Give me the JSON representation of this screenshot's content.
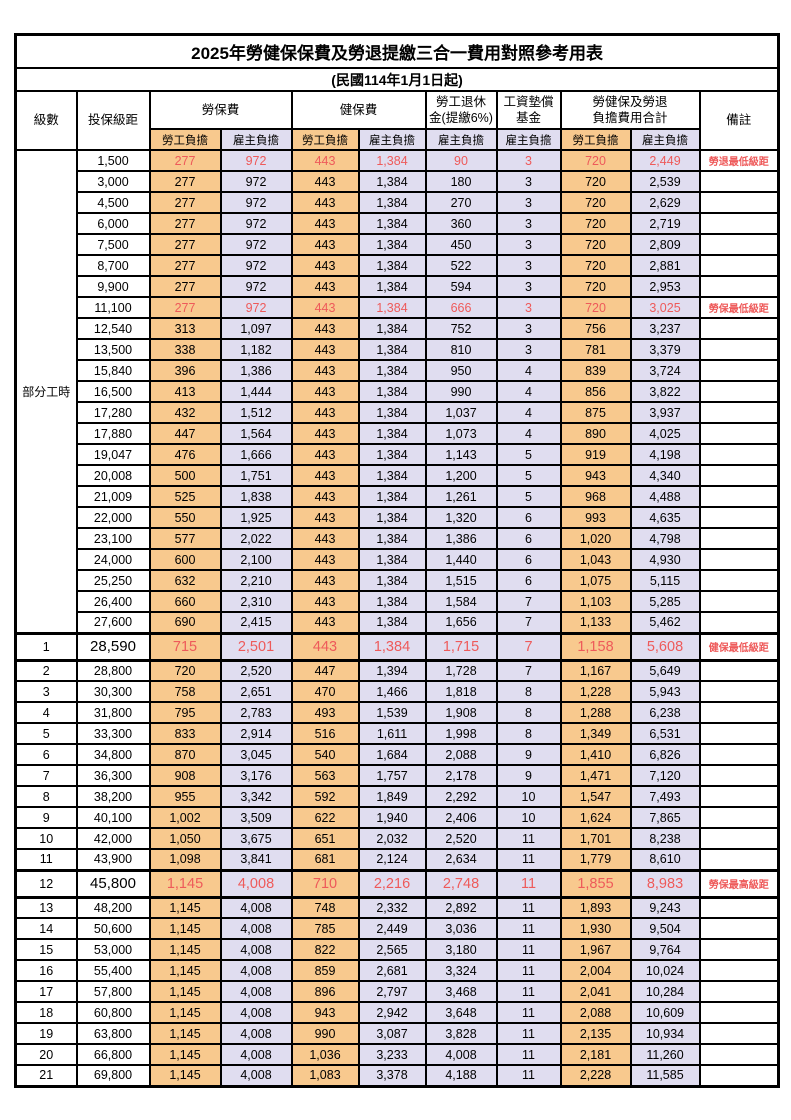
{
  "title": "2025年勞健保保費及勞退提繳三合一費用對照參考用表",
  "subtitle": "(民國114年1月1日起)",
  "header": {
    "level": "級數",
    "salary": "投保級距",
    "labor_group": "勞保費",
    "health_group": "健保費",
    "pension_group": "勞工退休\n金(提繳6%)",
    "wage_fund_group": "工資墊償\n基金",
    "total_group": "勞健保及勞退\n負擔費用合計",
    "note": "備註",
    "employee": "勞工負擔",
    "employer": "雇主負擔"
  },
  "part_time": {
    "label": "部分工時",
    "span": 23
  },
  "colors": {
    "employee_bg": "#F8C98E",
    "employer_bg": "#E0DDF0",
    "highlight_red": "#EE5A5A",
    "border": "#000000"
  },
  "rows": [
    {
      "level": "",
      "salary": "1,500",
      "cells": [
        "277",
        "972",
        "443",
        "1,384",
        "90",
        "3",
        "720",
        "2,449"
      ],
      "note": "勞退最低級距",
      "style": "red"
    },
    {
      "level": "",
      "salary": "3,000",
      "cells": [
        "277",
        "972",
        "443",
        "1,384",
        "180",
        "3",
        "720",
        "2,539"
      ],
      "note": "",
      "style": ""
    },
    {
      "level": "",
      "salary": "4,500",
      "cells": [
        "277",
        "972",
        "443",
        "1,384",
        "270",
        "3",
        "720",
        "2,629"
      ],
      "note": "",
      "style": ""
    },
    {
      "level": "",
      "salary": "6,000",
      "cells": [
        "277",
        "972",
        "443",
        "1,384",
        "360",
        "3",
        "720",
        "2,719"
      ],
      "note": "",
      "style": ""
    },
    {
      "level": "",
      "salary": "7,500",
      "cells": [
        "277",
        "972",
        "443",
        "1,384",
        "450",
        "3",
        "720",
        "2,809"
      ],
      "note": "",
      "style": ""
    },
    {
      "level": "",
      "salary": "8,700",
      "cells": [
        "277",
        "972",
        "443",
        "1,384",
        "522",
        "3",
        "720",
        "2,881"
      ],
      "note": "",
      "style": ""
    },
    {
      "level": "",
      "salary": "9,900",
      "cells": [
        "277",
        "972",
        "443",
        "1,384",
        "594",
        "3",
        "720",
        "2,953"
      ],
      "note": "",
      "style": ""
    },
    {
      "level": "",
      "salary": "11,100",
      "cells": [
        "277",
        "972",
        "443",
        "1,384",
        "666",
        "3",
        "720",
        "3,025"
      ],
      "note": "勞保最低級距",
      "style": "red"
    },
    {
      "level": "",
      "salary": "12,540",
      "cells": [
        "313",
        "1,097",
        "443",
        "1,384",
        "752",
        "3",
        "756",
        "3,237"
      ],
      "note": "",
      "style": ""
    },
    {
      "level": "",
      "salary": "13,500",
      "cells": [
        "338",
        "1,182",
        "443",
        "1,384",
        "810",
        "3",
        "781",
        "3,379"
      ],
      "note": "",
      "style": ""
    },
    {
      "level": "",
      "salary": "15,840",
      "cells": [
        "396",
        "1,386",
        "443",
        "1,384",
        "950",
        "4",
        "839",
        "3,724"
      ],
      "note": "",
      "style": ""
    },
    {
      "level": "",
      "salary": "16,500",
      "cells": [
        "413",
        "1,444",
        "443",
        "1,384",
        "990",
        "4",
        "856",
        "3,822"
      ],
      "note": "",
      "style": ""
    },
    {
      "level": "",
      "salary": "17,280",
      "cells": [
        "432",
        "1,512",
        "443",
        "1,384",
        "1,037",
        "4",
        "875",
        "3,937"
      ],
      "note": "",
      "style": ""
    },
    {
      "level": "",
      "salary": "17,880",
      "cells": [
        "447",
        "1,564",
        "443",
        "1,384",
        "1,073",
        "4",
        "890",
        "4,025"
      ],
      "note": "",
      "style": ""
    },
    {
      "level": "",
      "salary": "19,047",
      "cells": [
        "476",
        "1,666",
        "443",
        "1,384",
        "1,143",
        "5",
        "919",
        "4,198"
      ],
      "note": "",
      "style": ""
    },
    {
      "level": "",
      "salary": "20,008",
      "cells": [
        "500",
        "1,751",
        "443",
        "1,384",
        "1,200",
        "5",
        "943",
        "4,340"
      ],
      "note": "",
      "style": ""
    },
    {
      "level": "",
      "salary": "21,009",
      "cells": [
        "525",
        "1,838",
        "443",
        "1,384",
        "1,261",
        "5",
        "968",
        "4,488"
      ],
      "note": "",
      "style": ""
    },
    {
      "level": "",
      "salary": "22,000",
      "cells": [
        "550",
        "1,925",
        "443",
        "1,384",
        "1,320",
        "6",
        "993",
        "4,635"
      ],
      "note": "",
      "style": ""
    },
    {
      "level": "",
      "salary": "23,100",
      "cells": [
        "577",
        "2,022",
        "443",
        "1,384",
        "1,386",
        "6",
        "1,020",
        "4,798"
      ],
      "note": "",
      "style": ""
    },
    {
      "level": "",
      "salary": "24,000",
      "cells": [
        "600",
        "2,100",
        "443",
        "1,384",
        "1,440",
        "6",
        "1,043",
        "4,930"
      ],
      "note": "",
      "style": ""
    },
    {
      "level": "",
      "salary": "25,250",
      "cells": [
        "632",
        "2,210",
        "443",
        "1,384",
        "1,515",
        "6",
        "1,075",
        "5,115"
      ],
      "note": "",
      "style": ""
    },
    {
      "level": "",
      "salary": "26,400",
      "cells": [
        "660",
        "2,310",
        "443",
        "1,384",
        "1,584",
        "7",
        "1,103",
        "5,285"
      ],
      "note": "",
      "style": ""
    },
    {
      "level": "",
      "salary": "27,600",
      "cells": [
        "690",
        "2,415",
        "443",
        "1,384",
        "1,656",
        "7",
        "1,133",
        "5,462"
      ],
      "note": "",
      "style": ""
    },
    {
      "level": "1",
      "salary": "28,590",
      "cells": [
        "715",
        "2,501",
        "443",
        "1,384",
        "1,715",
        "7",
        "1,158",
        "5,608"
      ],
      "note": "健保最低級距",
      "style": "red tall"
    },
    {
      "level": "2",
      "salary": "28,800",
      "cells": [
        "720",
        "2,520",
        "447",
        "1,394",
        "1,728",
        "7",
        "1,167",
        "5,649"
      ],
      "note": "",
      "style": ""
    },
    {
      "level": "3",
      "salary": "30,300",
      "cells": [
        "758",
        "2,651",
        "470",
        "1,466",
        "1,818",
        "8",
        "1,228",
        "5,943"
      ],
      "note": "",
      "style": ""
    },
    {
      "level": "4",
      "salary": "31,800",
      "cells": [
        "795",
        "2,783",
        "493",
        "1,539",
        "1,908",
        "8",
        "1,288",
        "6,238"
      ],
      "note": "",
      "style": ""
    },
    {
      "level": "5",
      "salary": "33,300",
      "cells": [
        "833",
        "2,914",
        "516",
        "1,611",
        "1,998",
        "8",
        "1,349",
        "6,531"
      ],
      "note": "",
      "style": ""
    },
    {
      "level": "6",
      "salary": "34,800",
      "cells": [
        "870",
        "3,045",
        "540",
        "1,684",
        "2,088",
        "9",
        "1,410",
        "6,826"
      ],
      "note": "",
      "style": ""
    },
    {
      "level": "7",
      "salary": "36,300",
      "cells": [
        "908",
        "3,176",
        "563",
        "1,757",
        "2,178",
        "9",
        "1,471",
        "7,120"
      ],
      "note": "",
      "style": ""
    },
    {
      "level": "8",
      "salary": "38,200",
      "cells": [
        "955",
        "3,342",
        "592",
        "1,849",
        "2,292",
        "10",
        "1,547",
        "7,493"
      ],
      "note": "",
      "style": ""
    },
    {
      "level": "9",
      "salary": "40,100",
      "cells": [
        "1,002",
        "3,509",
        "622",
        "1,940",
        "2,406",
        "10",
        "1,624",
        "7,865"
      ],
      "note": "",
      "style": ""
    },
    {
      "level": "10",
      "salary": "42,000",
      "cells": [
        "1,050",
        "3,675",
        "651",
        "2,032",
        "2,520",
        "11",
        "1,701",
        "8,238"
      ],
      "note": "",
      "style": ""
    },
    {
      "level": "11",
      "salary": "43,900",
      "cells": [
        "1,098",
        "3,841",
        "681",
        "2,124",
        "2,634",
        "11",
        "1,779",
        "8,610"
      ],
      "note": "",
      "style": ""
    },
    {
      "level": "12",
      "salary": "45,800",
      "cells": [
        "1,145",
        "4,008",
        "710",
        "2,216",
        "2,748",
        "11",
        "1,855",
        "8,983"
      ],
      "note": "勞保最高級距",
      "style": "red tall"
    },
    {
      "level": "13",
      "salary": "48,200",
      "cells": [
        "1,145",
        "4,008",
        "748",
        "2,332",
        "2,892",
        "11",
        "1,893",
        "9,243"
      ],
      "note": "",
      "style": ""
    },
    {
      "level": "14",
      "salary": "50,600",
      "cells": [
        "1,145",
        "4,008",
        "785",
        "2,449",
        "3,036",
        "11",
        "1,930",
        "9,504"
      ],
      "note": "",
      "style": ""
    },
    {
      "level": "15",
      "salary": "53,000",
      "cells": [
        "1,145",
        "4,008",
        "822",
        "2,565",
        "3,180",
        "11",
        "1,967",
        "9,764"
      ],
      "note": "",
      "style": ""
    },
    {
      "level": "16",
      "salary": "55,400",
      "cells": [
        "1,145",
        "4,008",
        "859",
        "2,681",
        "3,324",
        "11",
        "2,004",
        "10,024"
      ],
      "note": "",
      "style": ""
    },
    {
      "level": "17",
      "salary": "57,800",
      "cells": [
        "1,145",
        "4,008",
        "896",
        "2,797",
        "3,468",
        "11",
        "2,041",
        "10,284"
      ],
      "note": "",
      "style": ""
    },
    {
      "level": "18",
      "salary": "60,800",
      "cells": [
        "1,145",
        "4,008",
        "943",
        "2,942",
        "3,648",
        "11",
        "2,088",
        "10,609"
      ],
      "note": "",
      "style": ""
    },
    {
      "level": "19",
      "salary": "63,800",
      "cells": [
        "1,145",
        "4,008",
        "990",
        "3,087",
        "3,828",
        "11",
        "2,135",
        "10,934"
      ],
      "note": "",
      "style": ""
    },
    {
      "level": "20",
      "salary": "66,800",
      "cells": [
        "1,145",
        "4,008",
        "1,036",
        "3,233",
        "4,008",
        "11",
        "2,181",
        "11,260"
      ],
      "note": "",
      "style": ""
    },
    {
      "level": "21",
      "salary": "69,800",
      "cells": [
        "1,145",
        "4,008",
        "1,083",
        "3,378",
        "4,188",
        "11",
        "2,228",
        "11,585"
      ],
      "note": "",
      "style": ""
    }
  ]
}
